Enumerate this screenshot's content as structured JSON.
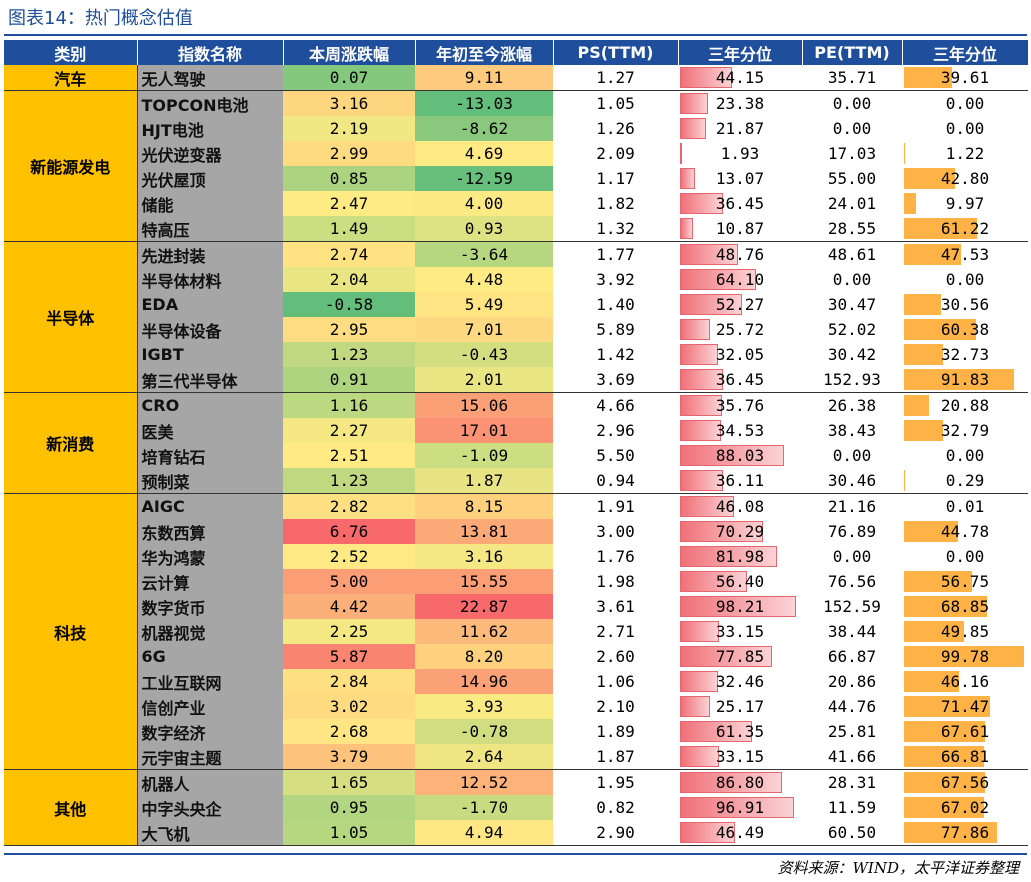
{
  "title": "图表14：热门概念估值",
  "source": "资料来源：WIND，太平洋证券整理",
  "headers": [
    "类别",
    "指数名称",
    "本周涨跌幅",
    "年初至今涨幅",
    "PS(TTM)",
    "三年分位",
    "PE(TTM)",
    "三年分位"
  ],
  "groups": [
    {
      "category": "汽车",
      "rows": [
        [
          "无人驾驶",
          "0.07",
          "9.11",
          "1.27",
          "44.15",
          "35.71",
          "39.61"
        ]
      ]
    },
    {
      "category": "新能源发电",
      "rows": [
        [
          "TOPCON电池",
          "3.16",
          "-13.03",
          "1.05",
          "23.38",
          "0.00",
          "0.00"
        ],
        [
          "HJT电池",
          "2.19",
          "-8.62",
          "1.26",
          "21.87",
          "0.00",
          "0.00"
        ],
        [
          "光伏逆变器",
          "2.99",
          "4.69",
          "2.09",
          "1.93",
          "17.03",
          "1.22"
        ],
        [
          "光伏屋顶",
          "0.85",
          "-12.59",
          "1.17",
          "13.07",
          "55.00",
          "42.80"
        ],
        [
          "储能",
          "2.47",
          "4.00",
          "1.82",
          "36.45",
          "24.01",
          "9.97"
        ],
        [
          "特高压",
          "1.49",
          "0.93",
          "1.32",
          "10.87",
          "28.55",
          "61.22"
        ]
      ]
    },
    {
      "category": "半导体",
      "rows": [
        [
          "先进封装",
          "2.74",
          "-3.64",
          "1.77",
          "48.76",
          "48.61",
          "47.53"
        ],
        [
          "半导体材料",
          "2.04",
          "4.48",
          "3.92",
          "64.10",
          "0.00",
          "0.00"
        ],
        [
          "EDA",
          "-0.58",
          "5.49",
          "1.40",
          "52.27",
          "30.47",
          "30.56"
        ],
        [
          "半导体设备",
          "2.95",
          "7.01",
          "5.89",
          "25.72",
          "52.02",
          "60.38"
        ],
        [
          "IGBT",
          "1.23",
          "-0.43",
          "1.42",
          "32.05",
          "30.42",
          "32.73"
        ],
        [
          "第三代半导体",
          "0.91",
          "2.01",
          "3.69",
          "36.45",
          "152.93",
          "91.83"
        ]
      ]
    },
    {
      "category": "新消费",
      "rows": [
        [
          "CRO",
          "1.16",
          "15.06",
          "4.66",
          "35.76",
          "26.38",
          "20.88"
        ],
        [
          "医美",
          "2.27",
          "17.01",
          "2.96",
          "34.53",
          "38.43",
          "32.79"
        ],
        [
          "培育钻石",
          "2.51",
          "-1.09",
          "5.50",
          "88.03",
          "0.00",
          "0.00"
        ],
        [
          "预制菜",
          "1.23",
          "1.87",
          "0.94",
          "36.11",
          "30.46",
          "0.29"
        ]
      ]
    },
    {
      "category": "科技",
      "rows": [
        [
          "AIGC",
          "2.82",
          "8.15",
          "1.91",
          "46.08",
          "21.16",
          "0.01"
        ],
        [
          "东数西算",
          "6.76",
          "13.81",
          "3.00",
          "70.29",
          "76.89",
          "44.78"
        ],
        [
          "华为鸿蒙",
          "2.52",
          "3.16",
          "1.76",
          "81.98",
          "0.00",
          "0.00"
        ],
        [
          "云计算",
          "5.00",
          "15.55",
          "1.98",
          "56.40",
          "76.56",
          "56.75"
        ],
        [
          "数字货币",
          "4.42",
          "22.87",
          "3.61",
          "98.21",
          "152.59",
          "68.85"
        ],
        [
          "机器视觉",
          "2.25",
          "11.62",
          "2.71",
          "33.15",
          "38.44",
          "49.85"
        ],
        [
          "6G",
          "5.87",
          "8.20",
          "2.60",
          "77.85",
          "66.87",
          "99.78"
        ],
        [
          "工业互联网",
          "2.84",
          "14.96",
          "1.06",
          "32.46",
          "20.86",
          "46.16"
        ],
        [
          "信创产业",
          "3.02",
          "3.93",
          "2.10",
          "25.17",
          "44.76",
          "71.47"
        ],
        [
          "数字经济",
          "2.68",
          "-0.78",
          "1.89",
          "61.35",
          "25.81",
          "67.61"
        ],
        [
          "元宇宙主题",
          "3.79",
          "2.64",
          "1.87",
          "33.15",
          "41.66",
          "66.81"
        ]
      ]
    },
    {
      "category": "其他",
      "rows": [
        [
          "机器人",
          "1.65",
          "12.52",
          "1.95",
          "86.80",
          "28.31",
          "67.56"
        ],
        [
          "中字头央企",
          "0.95",
          "-1.70",
          "0.82",
          "96.91",
          "11.59",
          "67.02"
        ],
        [
          "大飞机",
          "1.05",
          "4.94",
          "2.90",
          "46.49",
          "60.50",
          "77.86"
        ]
      ]
    }
  ],
  "colors": {
    "header_bg": "#1f4e9c",
    "category_bg": "#ffc000",
    "name_bg": "#a6a6a6",
    "scale_low": "#63be7b",
    "scale_mid": "#ffeb84",
    "scale_high": "#f8696b",
    "ps_bar": "#f07078",
    "pe_bar": "#ffb347"
  }
}
